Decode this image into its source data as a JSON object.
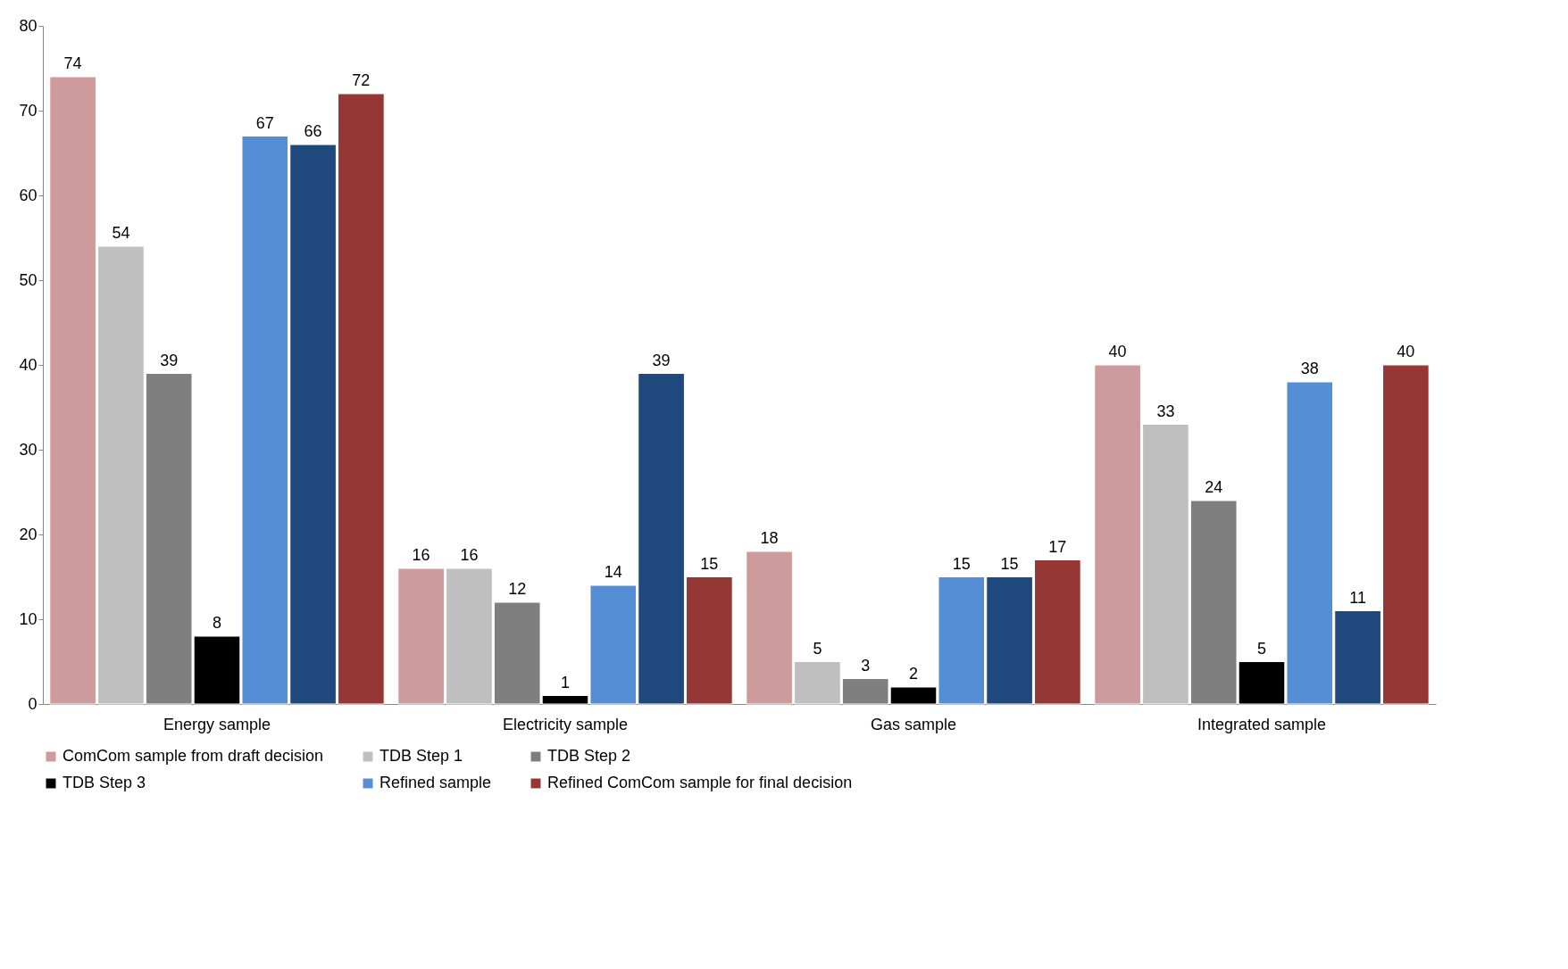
{
  "chart_data": {
    "type": "bar",
    "categories": [
      "Energy sample",
      "Electricity sample",
      "Gas sample",
      "Integrated sample"
    ],
    "series": [
      {
        "name": "ComCom sample from draft decision",
        "color": "#cd9b9b",
        "values": [
          74,
          16,
          18,
          40
        ]
      },
      {
        "name": "TDB Step 1",
        "color": "#bfbfbf",
        "values": [
          54,
          16,
          5,
          33
        ]
      },
      {
        "name": "TDB Step 2",
        "color": "#7f7f7f",
        "values": [
          39,
          12,
          3,
          24
        ]
      },
      {
        "name": "TDB Step 3",
        "color": "#000000",
        "values": [
          8,
          1,
          2,
          5
        ]
      },
      {
        "name": "Refined sample",
        "color": "#558ed5",
        "values": [
          67,
          14,
          15,
          38
        ]
      },
      {
        "color": "#1f497d",
        "values": [
          66,
          39,
          15,
          11
        ]
      },
      {
        "name": "Refined ComCom sample for final decision",
        "color": "#953735",
        "values": [
          72,
          15,
          17,
          40
        ]
      }
    ],
    "ylim": [
      0,
      80
    ],
    "yticks": [
      0,
      10,
      20,
      30,
      40,
      50,
      60,
      70,
      80
    ],
    "grid": false,
    "legend": "bottom",
    "data_labels": true
  }
}
